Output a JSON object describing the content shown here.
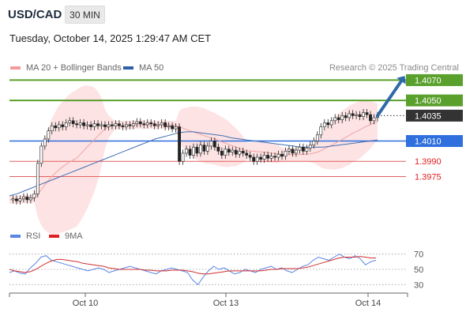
{
  "header": {
    "symbol": "USD/CAD",
    "timeframe": "30 MIN",
    "datetime": "Tuesday, October 14, 2025 1:29:47 AM CET"
  },
  "legend": {
    "ma_bb_label": "MA 20 + Bollinger Bands",
    "ma50_label": "MA 50",
    "credit": "Research © 2025 Trading Central",
    "rsi_label": "RSI",
    "ma9_label": "9MA"
  },
  "colors": {
    "bollinger_fill": "#fde3e3",
    "ma20": "#f0a4a4",
    "ma50": "#3f6fb5",
    "resistance": "#5aa02c",
    "pivot": "#2f6fde",
    "support": "#e06060",
    "rsi": "#5b86e5",
    "rsi_ma9": "#d32f2f",
    "arrow": "#2f6aa8",
    "current_price": "#333333"
  },
  "chart_data": [
    {
      "type": "candlestick",
      "title": "USD/CAD 30 MIN",
      "x_tick_labels": [
        "Oct 10",
        "Oct 13",
        "Oct 14"
      ],
      "price_levels": [
        {
          "label": "1.4070",
          "value": 1.407,
          "kind": "resistance"
        },
        {
          "label": "1.4050",
          "value": 1.405,
          "kind": "resistance"
        },
        {
          "label": "1.4035",
          "value": 1.4035,
          "kind": "current"
        },
        {
          "label": "1.4010",
          "value": 1.401,
          "kind": "pivot"
        },
        {
          "label": "1.3990",
          "value": 1.399,
          "kind": "support"
        },
        {
          "label": "1.3975",
          "value": 1.3975,
          "kind": "support"
        }
      ],
      "ylim": [
        1.3945,
        1.4075
      ],
      "series": [
        {
          "name": "MA 20 + Bollinger Bands"
        },
        {
          "name": "MA 50"
        }
      ],
      "closes": [
        1.3952,
        1.3953,
        1.3951,
        1.3953,
        1.3955,
        1.3952,
        1.3954,
        1.3958,
        1.3988,
        1.4005,
        1.4012,
        1.402,
        1.4025,
        1.4023,
        1.4026,
        1.4024,
        1.4028,
        1.403,
        1.4027,
        1.4026,
        1.4028,
        1.4025,
        1.4026,
        1.4024,
        1.4027,
        1.4025,
        1.4026,
        1.4024,
        1.4026,
        1.4025,
        1.4027,
        1.4025,
        1.4024,
        1.4026,
        1.4025,
        1.4027,
        1.4029,
        1.4027,
        1.4026,
        1.4028,
        1.4027,
        1.4025,
        1.4026,
        1.4028,
        1.4024,
        1.4025,
        1.4022,
        1.4024,
        1.399,
        1.3998,
        1.4002,
        1.3996,
        1.4004,
        1.3998,
        1.4006,
        1.4,
        1.4005,
        1.401,
        1.4004,
        1.4,
        1.3996,
        1.4002,
        1.3999,
        1.4001,
        1.3997,
        1.4,
        1.3998,
        1.3996,
        1.3994,
        1.399,
        1.3994,
        1.3992,
        1.3996,
        1.3993,
        1.3995,
        1.3994,
        1.3997,
        1.3995,
        1.4,
        1.4002,
        1.3998,
        1.4001,
        1.4004,
        1.4,
        1.4003,
        1.4006,
        1.401,
        1.4016,
        1.4024,
        1.4028,
        1.4026,
        1.403,
        1.4033,
        1.4031,
        1.4035,
        1.4033,
        1.4037,
        1.4035,
        1.4036,
        1.4034,
        1.4038,
        1.4036,
        1.403,
        1.4033,
        1.4035
      ],
      "ma50": [
        1.3956,
        1.3958,
        1.3961,
        1.3964,
        1.3967,
        1.397,
        1.3973,
        1.3976,
        1.3979,
        1.3982,
        1.3985,
        1.3988,
        1.3991,
        1.3994,
        1.3997,
        1.4,
        1.4003,
        1.4006,
        1.4009,
        1.4012,
        1.4014,
        1.4016,
        1.4018,
        1.4019,
        1.4019,
        1.4018,
        1.4017,
        1.4016,
        1.4015,
        1.4013,
        1.4012,
        1.4011,
        1.401,
        1.4009,
        1.4008,
        1.4007,
        1.4006,
        1.4005,
        1.4004,
        1.4004,
        1.4004,
        1.4004,
        1.4005,
        1.4006,
        1.4007,
        1.4008,
        1.4009,
        1.401,
        1.4011
      ]
    },
    {
      "type": "line",
      "title": "RSI",
      "ylim": [
        20,
        80
      ],
      "y_ticks": [
        70,
        50,
        30
      ],
      "series": [
        {
          "name": "RSI",
          "values": [
            46,
            48,
            45,
            44,
            52,
            58,
            66,
            68,
            62,
            60,
            58,
            56,
            54,
            52,
            50,
            48,
            50,
            52,
            50,
            46,
            48,
            50,
            52,
            54,
            52,
            50,
            48,
            46,
            44,
            48,
            50,
            52,
            50,
            48,
            46,
            36,
            30,
            40,
            48,
            54,
            50,
            52,
            48,
            44,
            46,
            50,
            48,
            46,
            50,
            52,
            54,
            50,
            52,
            48,
            46,
            50,
            54,
            56,
            62,
            66,
            64,
            62,
            66,
            70,
            66,
            64,
            68,
            64,
            56,
            60,
            62
          ]
        },
        {
          "name": "9MA",
          "values": [
            50,
            48,
            47,
            46,
            47,
            50,
            54,
            58,
            61,
            63,
            63,
            62,
            61,
            60,
            58,
            57,
            56,
            55,
            54,
            52,
            51,
            50,
            50,
            50,
            50,
            50,
            49,
            49,
            48,
            48,
            48,
            49,
            49,
            49,
            48,
            47,
            45,
            44,
            44,
            45,
            46,
            47,
            48,
            48,
            48,
            48,
            48,
            48,
            48,
            49,
            50,
            50,
            51,
            51,
            51,
            51,
            52,
            53,
            55,
            57,
            59,
            61,
            63,
            65,
            66,
            66,
            66,
            67,
            66,
            65,
            65
          ]
        }
      ]
    }
  ]
}
